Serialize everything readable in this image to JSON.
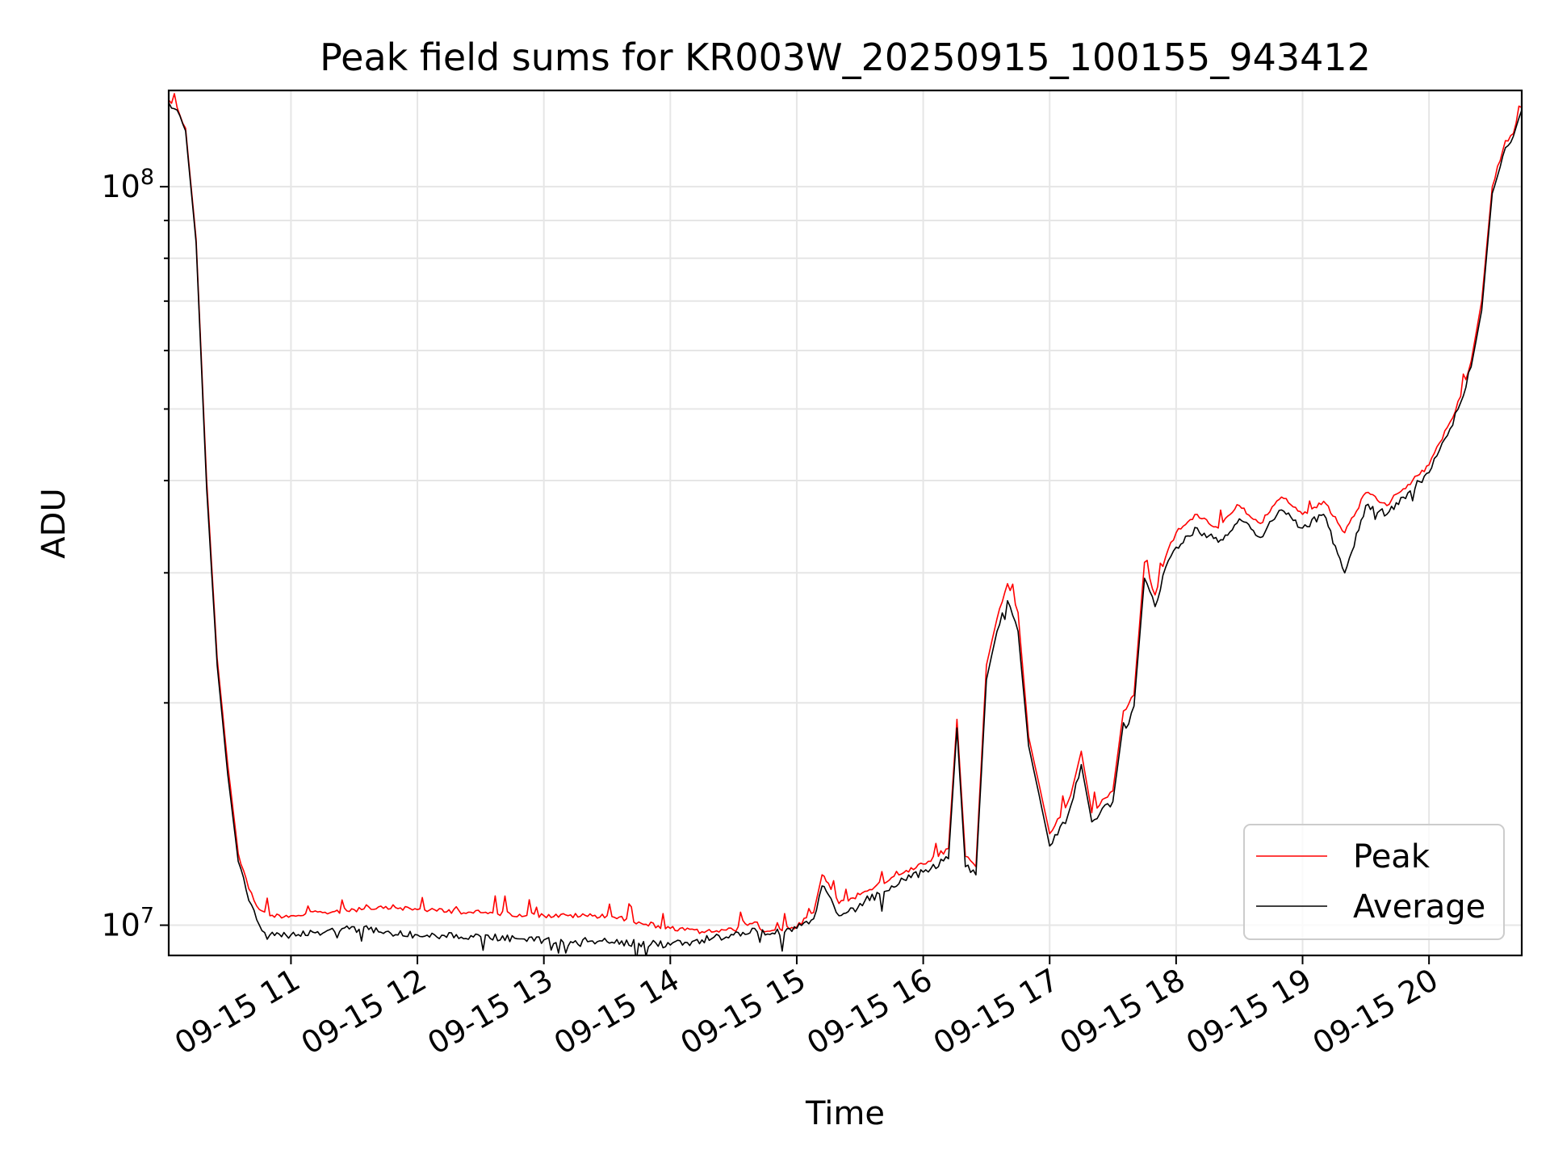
{
  "chart_data": {
    "type": "line",
    "title": "Peak field sums for KR003W_20250915_100155_943412",
    "xlabel": "Time",
    "ylabel": "ADU",
    "y_scale": "log",
    "ylim": [
      9100000,
      135000000
    ],
    "xlim": [
      "2025-09-15 10:02",
      "2025-09-15 20:44"
    ],
    "x_ticks": [
      {
        "t": "2025-09-15 11:00",
        "label": "09-15 11"
      },
      {
        "t": "2025-09-15 12:00",
        "label": "09-15 12"
      },
      {
        "t": "2025-09-15 13:00",
        "label": "09-15 13"
      },
      {
        "t": "2025-09-15 14:00",
        "label": "09-15 14"
      },
      {
        "t": "2025-09-15 15:00",
        "label": "09-15 15"
      },
      {
        "t": "2025-09-15 16:00",
        "label": "09-15 16"
      },
      {
        "t": "2025-09-15 17:00",
        "label": "09-15 17"
      },
      {
        "t": "2025-09-15 18:00",
        "label": "09-15 18"
      },
      {
        "t": "2025-09-15 19:00",
        "label": "09-15 19"
      },
      {
        "t": "2025-09-15 20:00",
        "label": "09-15 20"
      }
    ],
    "y_ticks": [
      {
        "value": 10000000,
        "label": "10^7",
        "base": "10",
        "exp": "7"
      },
      {
        "value": 100000000,
        "label": "10^8",
        "base": "10",
        "exp": "8"
      }
    ],
    "grid": true,
    "legend_position": "lower-right",
    "series": [
      {
        "name": "Peak",
        "color": "#ff0000",
        "x": [
          "2025-09-15 10:02",
          "2025-09-15 10:06",
          "2025-09-15 10:10",
          "2025-09-15 10:15",
          "2025-09-15 10:20",
          "2025-09-15 10:25",
          "2025-09-15 10:30",
          "2025-09-15 10:35",
          "2025-09-15 10:40",
          "2025-09-15 10:45",
          "2025-09-15 10:50",
          "2025-09-15 11:00",
          "2025-09-15 11:15",
          "2025-09-15 11:30",
          "2025-09-15 11:45",
          "2025-09-15 12:00",
          "2025-09-15 12:30",
          "2025-09-15 13:00",
          "2025-09-15 13:30",
          "2025-09-15 13:45",
          "2025-09-15 14:00",
          "2025-09-15 14:15",
          "2025-09-15 14:30",
          "2025-09-15 14:40",
          "2025-09-15 14:45",
          "2025-09-15 15:00",
          "2025-09-15 15:08",
          "2025-09-15 15:12",
          "2025-09-15 15:15",
          "2025-09-15 15:20",
          "2025-09-15 15:30",
          "2025-09-15 15:45",
          "2025-09-15 16:00",
          "2025-09-15 16:12",
          "2025-09-15 16:16",
          "2025-09-15 16:20",
          "2025-09-15 16:25",
          "2025-09-15 16:30",
          "2025-09-15 16:35",
          "2025-09-15 16:40",
          "2025-09-15 16:45",
          "2025-09-15 16:50",
          "2025-09-15 16:55",
          "2025-09-15 17:00",
          "2025-09-15 17:05",
          "2025-09-15 17:10",
          "2025-09-15 17:15",
          "2025-09-15 17:20",
          "2025-09-15 17:25",
          "2025-09-15 17:30",
          "2025-09-15 17:35",
          "2025-09-15 17:40",
          "2025-09-15 17:45",
          "2025-09-15 17:50",
          "2025-09-15 17:55",
          "2025-09-15 18:00",
          "2025-09-15 18:10",
          "2025-09-15 18:20",
          "2025-09-15 18:30",
          "2025-09-15 18:40",
          "2025-09-15 18:50",
          "2025-09-15 19:00",
          "2025-09-15 19:10",
          "2025-09-15 19:20",
          "2025-09-15 19:30",
          "2025-09-15 19:40",
          "2025-09-15 19:50",
          "2025-09-15 20:00",
          "2025-09-15 20:05",
          "2025-09-15 20:10",
          "2025-09-15 20:15",
          "2025-09-15 20:20",
          "2025-09-15 20:25",
          "2025-09-15 20:30",
          "2025-09-15 20:35",
          "2025-09-15 20:40",
          "2025-09-15 20:44"
        ],
        "values": [
          131000000,
          128000000,
          120000000,
          85000000,
          40000000,
          23000000,
          16500000,
          12500000,
          11200000,
          10500000,
          10300000,
          10300000,
          10400000,
          10500000,
          10600000,
          10500000,
          10400000,
          10300000,
          10300000,
          10100000,
          9900000,
          9800000,
          9850000,
          10100000,
          9800000,
          9950000,
          10400000,
          11700000,
          11400000,
          10700000,
          11000000,
          11600000,
          12100000,
          12700000,
          19000000,
          12400000,
          12000000,
          22500000,
          26000000,
          29000000,
          26500000,
          18000000,
          15500000,
          13300000,
          14000000,
          15000000,
          17200000,
          14200000,
          14800000,
          15200000,
          19500000,
          20500000,
          31000000,
          28000000,
          31500000,
          34000000,
          36000000,
          34500000,
          37000000,
          35000000,
          38000000,
          36000000,
          37500000,
          34000000,
          38500000,
          37000000,
          39500000,
          42000000,
          45000000,
          48000000,
          52000000,
          58000000,
          70000000,
          100000000,
          112000000,
          118000000,
          128000000
        ]
      },
      {
        "name": "Average",
        "color": "#000000",
        "x": [
          "2025-09-15 10:02",
          "2025-09-15 10:06",
          "2025-09-15 10:10",
          "2025-09-15 10:15",
          "2025-09-15 10:20",
          "2025-09-15 10:25",
          "2025-09-15 10:30",
          "2025-09-15 10:35",
          "2025-09-15 10:40",
          "2025-09-15 10:45",
          "2025-09-15 10:50",
          "2025-09-15 11:00",
          "2025-09-15 11:15",
          "2025-09-15 11:30",
          "2025-09-15 11:45",
          "2025-09-15 12:00",
          "2025-09-15 12:30",
          "2025-09-15 13:00",
          "2025-09-15 13:30",
          "2025-09-15 13:45",
          "2025-09-15 14:00",
          "2025-09-15 14:15",
          "2025-09-15 14:30",
          "2025-09-15 14:40",
          "2025-09-15 14:45",
          "2025-09-15 15:00",
          "2025-09-15 15:08",
          "2025-09-15 15:12",
          "2025-09-15 15:15",
          "2025-09-15 15:20",
          "2025-09-15 15:30",
          "2025-09-15 15:45",
          "2025-09-15 16:00",
          "2025-09-15 16:12",
          "2025-09-15 16:16",
          "2025-09-15 16:20",
          "2025-09-15 16:25",
          "2025-09-15 16:30",
          "2025-09-15 16:35",
          "2025-09-15 16:40",
          "2025-09-15 16:45",
          "2025-09-15 16:50",
          "2025-09-15 16:55",
          "2025-09-15 17:00",
          "2025-09-15 17:05",
          "2025-09-15 17:10",
          "2025-09-15 17:15",
          "2025-09-15 17:20",
          "2025-09-15 17:25",
          "2025-09-15 17:30",
          "2025-09-15 17:35",
          "2025-09-15 17:40",
          "2025-09-15 17:45",
          "2025-09-15 17:50",
          "2025-09-15 17:55",
          "2025-09-15 18:00",
          "2025-09-15 18:10",
          "2025-09-15 18:20",
          "2025-09-15 18:30",
          "2025-09-15 18:40",
          "2025-09-15 18:50",
          "2025-09-15 19:00",
          "2025-09-15 19:10",
          "2025-09-15 19:20",
          "2025-09-15 19:30",
          "2025-09-15 19:40",
          "2025-09-15 19:50",
          "2025-09-15 20:00",
          "2025-09-15 20:05",
          "2025-09-15 20:10",
          "2025-09-15 20:15",
          "2025-09-15 20:20",
          "2025-09-15 20:25",
          "2025-09-15 20:30",
          "2025-09-15 20:35",
          "2025-09-15 20:40",
          "2025-09-15 20:44"
        ],
        "values": [
          130000000,
          127000000,
          119000000,
          84000000,
          39000000,
          22500000,
          16000000,
          12200000,
          10800000,
          10000000,
          9700000,
          9700000,
          9750000,
          9950000,
          9800000,
          9700000,
          9650000,
          9550000,
          9500000,
          9450000,
          9400000,
          9550000,
          9700000,
          9900000,
          9700000,
          9900000,
          10200000,
          11300000,
          11000000,
          10300000,
          10700000,
          11300000,
          11800000,
          12300000,
          18500000,
          12000000,
          11700000,
          21500000,
          25000000,
          27500000,
          25000000,
          17500000,
          15000000,
          12800000,
          13600000,
          14500000,
          16500000,
          13800000,
          14400000,
          14700000,
          18800000,
          19800000,
          29500000,
          27000000,
          30500000,
          32500000,
          34500000,
          33000000,
          35500000,
          33500000,
          36500000,
          34500000,
          36000000,
          30000000,
          37000000,
          36000000,
          38500000,
          41000000,
          44000000,
          47000000,
          51000000,
          57000000,
          68000000,
          98000000,
          110000000,
          117000000,
          127000000
        ]
      }
    ]
  }
}
